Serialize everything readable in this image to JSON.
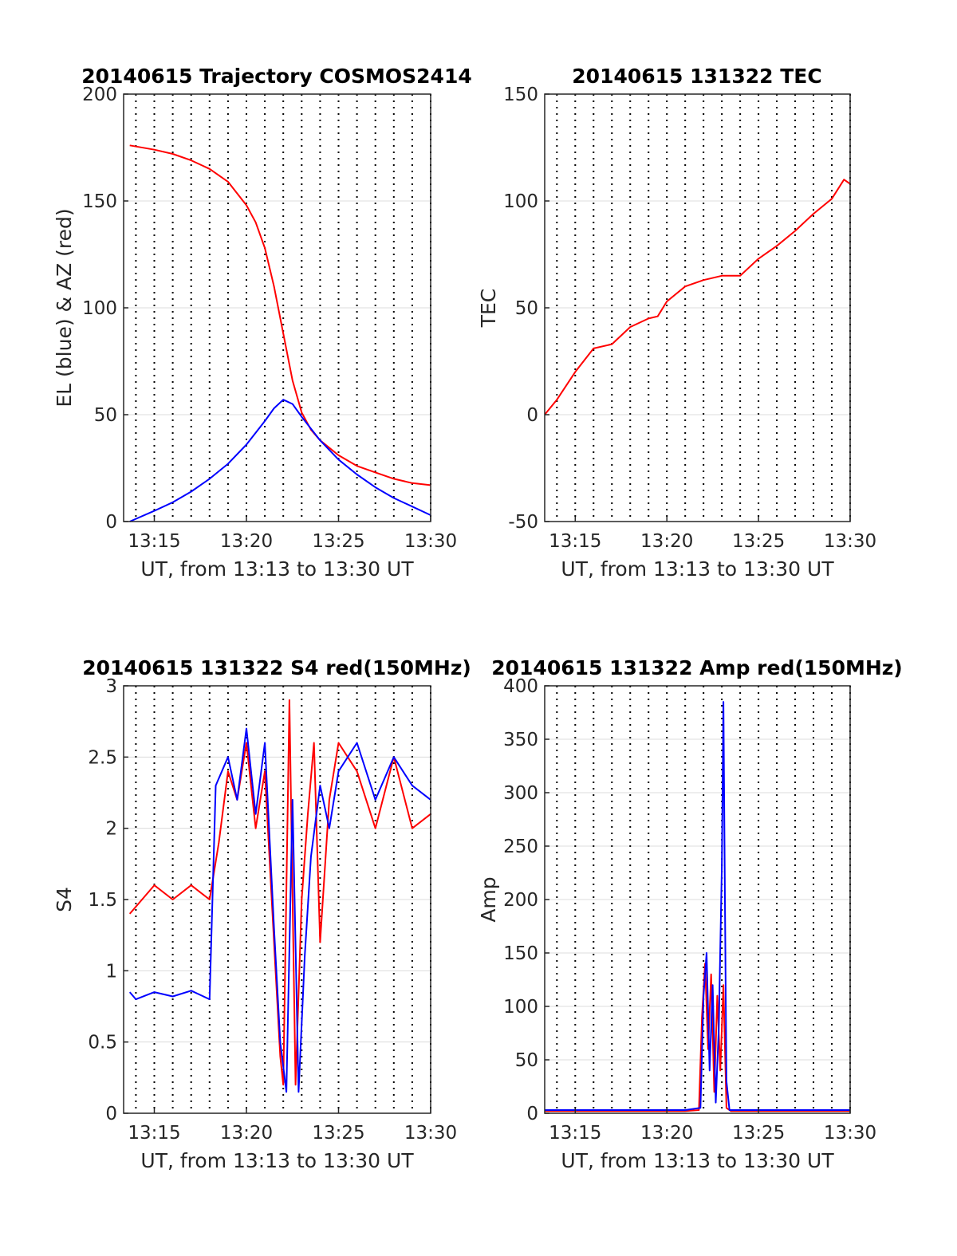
{
  "x_axis": {
    "xlim": [
      "13:13:20",
      "13:30:00"
    ],
    "ticks": [
      "13:15",
      "13:20",
      "13:25",
      "13:30"
    ],
    "minor_grid_every": "1 min",
    "xlabel": "UT, from 13:13 to 13:30 UT"
  },
  "colors": {
    "red": "#ff0000",
    "blue": "#0000ff",
    "grid": "#dcdcdc",
    "axis": "#262626"
  },
  "chart_data": [
    {
      "type": "line",
      "title": "20140615 Trajectory COSMOS2414",
      "xlabel": "UT, from 13:13 to 13:30 UT",
      "ylabel": "EL (blue) & AZ (red)",
      "ylim": [
        0,
        200
      ],
      "yticks": [
        "0",
        "50",
        "100",
        "150",
        "200"
      ],
      "grid": true,
      "series": [
        {
          "color": "#ff0000",
          "x": [
            "13:13:40",
            "13:15:00",
            "13:16:00",
            "13:17:00",
            "13:18:00",
            "13:19:00",
            "13:20:00",
            "13:20:30",
            "13:21:00",
            "13:21:30",
            "13:22:00",
            "13:22:30",
            "13:23:00",
            "13:23:30",
            "13:24:00",
            "13:25:00",
            "13:26:00",
            "13:27:00",
            "13:28:00",
            "13:29:00",
            "13:30:00"
          ],
          "y": [
            176,
            174,
            172,
            169,
            165,
            159,
            148,
            140,
            128,
            110,
            88,
            66,
            51,
            43,
            38,
            31,
            26,
            23,
            20,
            18,
            17
          ]
        },
        {
          "color": "#0000ff",
          "x": [
            "13:13:40",
            "13:15:00",
            "13:16:00",
            "13:17:00",
            "13:18:00",
            "13:19:00",
            "13:20:00",
            "13:21:00",
            "13:21:30",
            "13:22:00",
            "13:22:30",
            "13:23:00",
            "13:24:00",
            "13:25:00",
            "13:26:00",
            "13:27:00",
            "13:28:00",
            "13:29:00",
            "13:30:00"
          ],
          "y": [
            0,
            5,
            9,
            14,
            20,
            27,
            36,
            47,
            53,
            57,
            55,
            49,
            38,
            29,
            22,
            16,
            11,
            7,
            3
          ]
        }
      ]
    },
    {
      "type": "line",
      "title": "20140615 131322 TEC",
      "xlabel": "UT, from 13:13 to 13:30 UT",
      "ylabel": "TEC",
      "ylim": [
        -50,
        150
      ],
      "yticks": [
        "-50",
        "0",
        "50",
        "100",
        "150"
      ],
      "grid": true,
      "series": [
        {
          "color": "#ff0000",
          "x": [
            "13:13:20",
            "13:14:00",
            "13:15:00",
            "13:16:00",
            "13:17:00",
            "13:18:00",
            "13:19:00",
            "13:19:30",
            "13:20:00",
            "13:21:00",
            "13:22:00",
            "13:23:00",
            "13:24:00",
            "13:25:00",
            "13:26:00",
            "13:27:00",
            "13:28:00",
            "13:29:00",
            "13:29:40",
            "13:30:00"
          ],
          "y": [
            0,
            7,
            20,
            31,
            33,
            41,
            45,
            46,
            53,
            60,
            63,
            65,
            65,
            73,
            79,
            86,
            94,
            101,
            110,
            108
          ]
        }
      ]
    },
    {
      "type": "line",
      "title": "20140615 131322 S4 red(150MHz)",
      "xlabel": "UT, from 13:13 to 13:30 UT",
      "ylabel": "S4",
      "ylim": [
        0,
        3
      ],
      "yticks": [
        "0",
        "0.5",
        "1",
        "1.5",
        "2",
        "2.5",
        "3"
      ],
      "grid": true,
      "series": [
        {
          "color": "#ff0000",
          "x": [
            "13:13:40",
            "13:15:00",
            "13:16:00",
            "13:17:00",
            "13:18:00",
            "13:18:30",
            "13:19:00",
            "13:19:30",
            "13:20:00",
            "13:20:30",
            "13:21:00",
            "13:21:30",
            "13:21:50",
            "13:22:00",
            "13:22:20",
            "13:22:40",
            "13:23:00",
            "13:23:20",
            "13:23:40",
            "13:24:00",
            "13:24:30",
            "13:25:00",
            "13:26:00",
            "13:27:00",
            "13:28:00",
            "13:29:00",
            "13:30:00"
          ],
          "y": [
            1.4,
            1.6,
            1.5,
            1.6,
            1.5,
            1.9,
            2.4,
            2.2,
            2.6,
            2.0,
            2.4,
            1.2,
            0.4,
            0.2,
            2.9,
            0.2,
            1.5,
            2.1,
            2.6,
            1.2,
            2.2,
            2.6,
            2.4,
            2.0,
            2.5,
            2.0,
            2.1
          ]
        },
        {
          "color": "#0000ff",
          "x": [
            "13:13:40",
            "13:14:00",
            "13:15:00",
            "13:16:00",
            "13:17:00",
            "13:18:00",
            "13:18:20",
            "13:19:00",
            "13:19:30",
            "13:20:00",
            "13:20:30",
            "13:21:00",
            "13:21:30",
            "13:21:50",
            "13:22:10",
            "13:22:30",
            "13:22:50",
            "13:23:10",
            "13:23:30",
            "13:24:00",
            "13:24:30",
            "13:25:00",
            "13:26:00",
            "13:27:00",
            "13:28:00",
            "13:29:00",
            "13:30:00"
          ],
          "y": [
            0.85,
            0.8,
            0.85,
            0.82,
            0.86,
            0.8,
            2.3,
            2.5,
            2.2,
            2.7,
            2.1,
            2.6,
            1.3,
            0.5,
            0.15,
            2.2,
            0.15,
            1.1,
            1.8,
            2.3,
            2.0,
            2.4,
            2.6,
            2.2,
            2.5,
            2.3,
            2.2
          ]
        }
      ]
    },
    {
      "type": "line",
      "title": "20140615 131322 Amp red(150MHz)",
      "xlabel": "UT, from 13:13 to 13:30 UT",
      "ylabel": "Amp",
      "ylim": [
        0,
        400
      ],
      "yticks": [
        "0",
        "50",
        "100",
        "150",
        "200",
        "250",
        "300",
        "350",
        "400"
      ],
      "grid": true,
      "series": [
        {
          "color": "#ff0000",
          "x": [
            "13:13:20",
            "13:21:00",
            "13:21:45",
            "13:21:55",
            "13:22:05",
            "13:22:15",
            "13:22:25",
            "13:22:35",
            "13:22:45",
            "13:22:55",
            "13:23:05",
            "13:23:15",
            "13:23:30",
            "13:30:00"
          ],
          "y": [
            2,
            2,
            3,
            90,
            140,
            60,
            130,
            20,
            110,
            40,
            120,
            5,
            2,
            2
          ]
        },
        {
          "color": "#0000ff",
          "x": [
            "13:13:20",
            "13:21:00",
            "13:21:50",
            "13:22:00",
            "13:22:10",
            "13:22:20",
            "13:22:30",
            "13:22:40",
            "13:22:50",
            "13:23:00",
            "13:23:05",
            "13:23:10",
            "13:23:15",
            "13:23:25",
            "13:30:00"
          ],
          "y": [
            3,
            3,
            5,
            110,
            150,
            40,
            120,
            10,
            80,
            230,
            385,
            200,
            30,
            3,
            3
          ]
        }
      ]
    }
  ]
}
